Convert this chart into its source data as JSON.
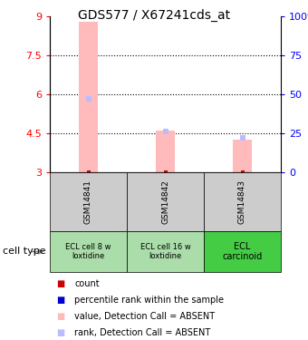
{
  "title": "GDS577 / X67241cds_at",
  "samples": [
    "GSM14841",
    "GSM14842",
    "GSM14843"
  ],
  "cell_type_labels": [
    [
      "ECL cell 8 w",
      "loxtidine"
    ],
    [
      "ECL cell 16 w",
      "loxtidine"
    ],
    [
      "ECL\ncarcinoid"
    ]
  ],
  "cell_type_colors": [
    "#aaddaa",
    "#aaddaa",
    "#44cc44"
  ],
  "ylim_left": [
    3,
    9
  ],
  "ylim_right": [
    0,
    100
  ],
  "yticks_left": [
    3,
    4.5,
    6,
    7.5,
    9
  ],
  "yticks_right": [
    0,
    25,
    50,
    75,
    100
  ],
  "yticklabels_right": [
    "0",
    "25",
    "50",
    "75",
    "100%"
  ],
  "bar_bottom": 3,
  "absent_bar_values": [
    8.8,
    4.6,
    4.25
  ],
  "absent_rank_values": [
    47,
    26,
    22
  ],
  "absent_bar_color": "#ffbbbb",
  "absent_rank_color": "#bbbbff",
  "count_color": "#cc0000",
  "rank_color": "#0000cc",
  "bar_width": 0.25,
  "dotted_yticks": [
    4.5,
    6.0,
    7.5
  ],
  "legend_items": [
    [
      "#cc0000",
      "count"
    ],
    [
      "#0000cc",
      "percentile rank within the sample"
    ],
    [
      "#ffbbbb",
      "value, Detection Call = ABSENT"
    ],
    [
      "#bbbbff",
      "rank, Detection Call = ABSENT"
    ]
  ]
}
